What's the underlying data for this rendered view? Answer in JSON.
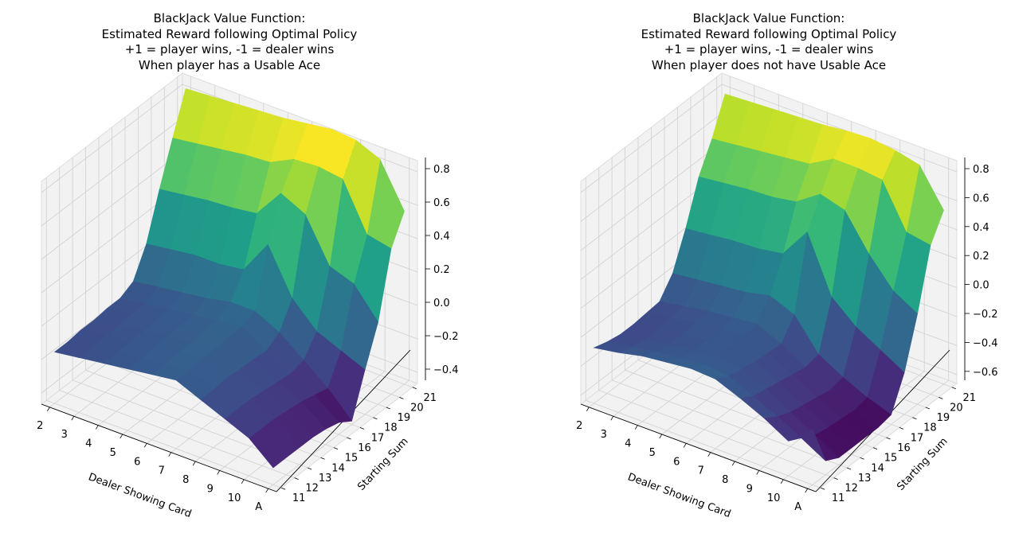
{
  "chart_data": [
    {
      "type": "surface",
      "title_lines": [
        "BlackJack Value Function:",
        "Estimated Reward following Optimal Policy",
        "+1 = player wins, -1 = dealer wins",
        "When player has a Usable Ace"
      ],
      "xlabel": "Dealer Showing Card",
      "ylabel": "Starting Sum",
      "x_ticks": [
        "2",
        "3",
        "4",
        "5",
        "6",
        "7",
        "8",
        "9",
        "10",
        "A"
      ],
      "y_ticks": [
        "11",
        "12",
        "13",
        "14",
        "15",
        "16",
        "17",
        "18",
        "19",
        "20",
        "21"
      ],
      "z_ticks": [
        "−0.4",
        "−0.2",
        "0.0",
        "0.2",
        "0.4",
        "0.6",
        "0.8"
      ],
      "zlim": [
        -0.4,
        0.9
      ],
      "colormap": "viridis",
      "grid": true,
      "z": [
        [
          -0.1,
          -0.08,
          -0.06,
          -0.04,
          -0.02,
          0.0,
          -0.06,
          -0.12,
          -0.18,
          -0.3
        ],
        [
          -0.1,
          -0.08,
          -0.06,
          -0.04,
          -0.02,
          0.0,
          -0.06,
          -0.12,
          -0.18,
          -0.3
        ],
        [
          -0.09,
          -0.07,
          -0.05,
          -0.03,
          -0.01,
          0.01,
          -0.05,
          -0.12,
          -0.18,
          -0.3
        ],
        [
          -0.09,
          -0.07,
          -0.05,
          -0.03,
          -0.01,
          0.01,
          -0.06,
          -0.13,
          -0.19,
          -0.3
        ],
        [
          -0.08,
          -0.06,
          -0.04,
          -0.02,
          0.0,
          0.02,
          -0.06,
          -0.14,
          -0.2,
          -0.31
        ],
        [
          -0.08,
          -0.06,
          -0.04,
          -0.02,
          0.0,
          0.02,
          -0.07,
          -0.15,
          -0.22,
          -0.33
        ],
        [
          -0.04,
          -0.02,
          0.0,
          0.02,
          0.05,
          0.05,
          -0.02,
          -0.13,
          -0.24,
          -0.38
        ],
        [
          0.12,
          0.14,
          0.16,
          0.16,
          0.18,
          0.38,
          0.12,
          -0.02,
          -0.08,
          -0.14
        ],
        [
          0.38,
          0.4,
          0.42,
          0.43,
          0.45,
          0.62,
          0.55,
          0.3,
          0.25,
          0.08
        ],
        [
          0.62,
          0.64,
          0.66,
          0.68,
          0.69,
          0.76,
          0.77,
          0.75,
          0.48,
          0.45
        ],
        [
          0.85,
          0.86,
          0.87,
          0.88,
          0.89,
          0.91,
          0.93,
          0.92,
          0.86,
          0.61
        ]
      ]
    },
    {
      "type": "surface",
      "title_lines": [
        "BlackJack Value Function:",
        "Estimated Reward following Optimal Policy",
        "+1 = player wins, -1 = dealer wins",
        "When player does not have Usable Ace"
      ],
      "xlabel": "Dealer Showing Card",
      "ylabel": "Starting Sum",
      "x_ticks": [
        "2",
        "3",
        "4",
        "5",
        "6",
        "7",
        "8",
        "9",
        "10",
        "A"
      ],
      "y_ticks": [
        "11",
        "12",
        "13",
        "14",
        "15",
        "16",
        "17",
        "18",
        "19",
        "20",
        "21"
      ],
      "z_ticks": [
        "−0.6",
        "−0.4",
        "−0.2",
        "0.0",
        "0.2",
        "0.4",
        "0.6",
        "0.8"
      ],
      "zlim": [
        -0.65,
        0.95
      ],
      "colormap": "viridis",
      "grid": true,
      "z": [
        [
          -0.25,
          -0.22,
          -0.18,
          -0.16,
          -0.14,
          -0.15,
          -0.22,
          -0.3,
          -0.4,
          -0.25
        ],
        [
          -0.28,
          -0.25,
          -0.22,
          -0.2,
          -0.18,
          -0.2,
          -0.28,
          -0.36,
          -0.45,
          -0.55
        ],
        [
          -0.3,
          -0.27,
          -0.24,
          -0.22,
          -0.2,
          -0.22,
          -0.3,
          -0.4,
          -0.5,
          -0.6
        ],
        [
          -0.3,
          -0.27,
          -0.24,
          -0.22,
          -0.2,
          -0.24,
          -0.32,
          -0.42,
          -0.52,
          -0.6
        ],
        [
          -0.29,
          -0.26,
          -0.23,
          -0.21,
          -0.19,
          -0.25,
          -0.34,
          -0.44,
          -0.53,
          -0.6
        ],
        [
          -0.28,
          -0.25,
          -0.22,
          -0.2,
          -0.18,
          -0.26,
          -0.36,
          -0.46,
          -0.54,
          -0.6
        ],
        [
          -0.15,
          -0.13,
          -0.11,
          -0.09,
          -0.05,
          -0.12,
          -0.34,
          -0.44,
          -0.52,
          -0.58
        ],
        [
          0.1,
          0.12,
          0.14,
          0.15,
          0.18,
          0.4,
          0.0,
          -0.15,
          -0.25,
          -0.35
        ],
        [
          0.4,
          0.42,
          0.44,
          0.45,
          0.48,
          0.6,
          0.55,
          0.3,
          0.1,
          0.0
        ],
        [
          0.6,
          0.62,
          0.64,
          0.66,
          0.68,
          0.78,
          0.78,
          0.76,
          0.45,
          0.42
        ],
        [
          0.85,
          0.86,
          0.87,
          0.88,
          0.89,
          0.91,
          0.92,
          0.9,
          0.86,
          0.6
        ]
      ]
    }
  ]
}
